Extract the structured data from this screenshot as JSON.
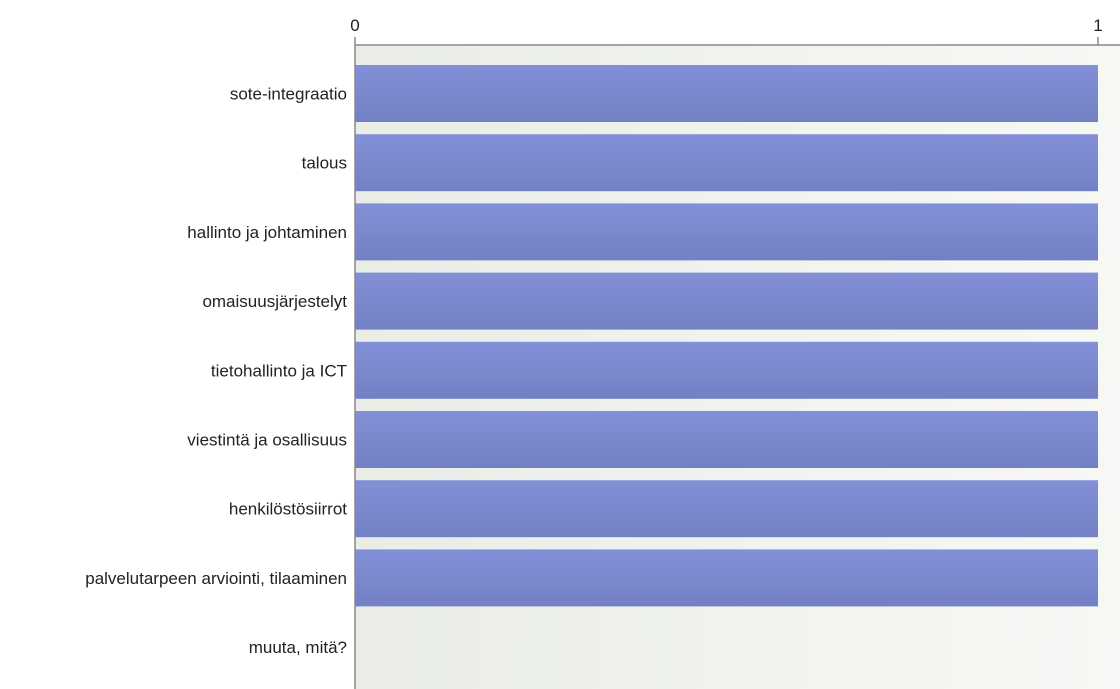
{
  "chart_data": {
    "type": "bar",
    "orientation": "horizontal",
    "categories": [
      "sote-integraatio",
      "talous",
      "hallinto ja johtaminen",
      "omaisuusjärjestelyt",
      "tietohallinto ja ICT",
      "viestintä ja osallisuus",
      "henkilöstösiirrot",
      "palvelutarpeen arviointi, tilaaminen",
      "muuta, mitä?"
    ],
    "values": [
      1,
      1,
      1,
      1,
      1,
      1,
      1,
      1,
      0
    ],
    "xlim": [
      0,
      1
    ],
    "x_ticks": [
      "0",
      "1"
    ],
    "x_axis_position": "top",
    "grid": false,
    "legend": "none",
    "title": "",
    "xlabel": "",
    "ylabel": "",
    "colors": {
      "bar_top": "#8390d8",
      "bar_bottom": "#7380c4",
      "plot_bg_left": "#e9ede6",
      "plot_bg_right": "#f7f8f5",
      "axis": "#888888",
      "text": "#222222"
    }
  }
}
